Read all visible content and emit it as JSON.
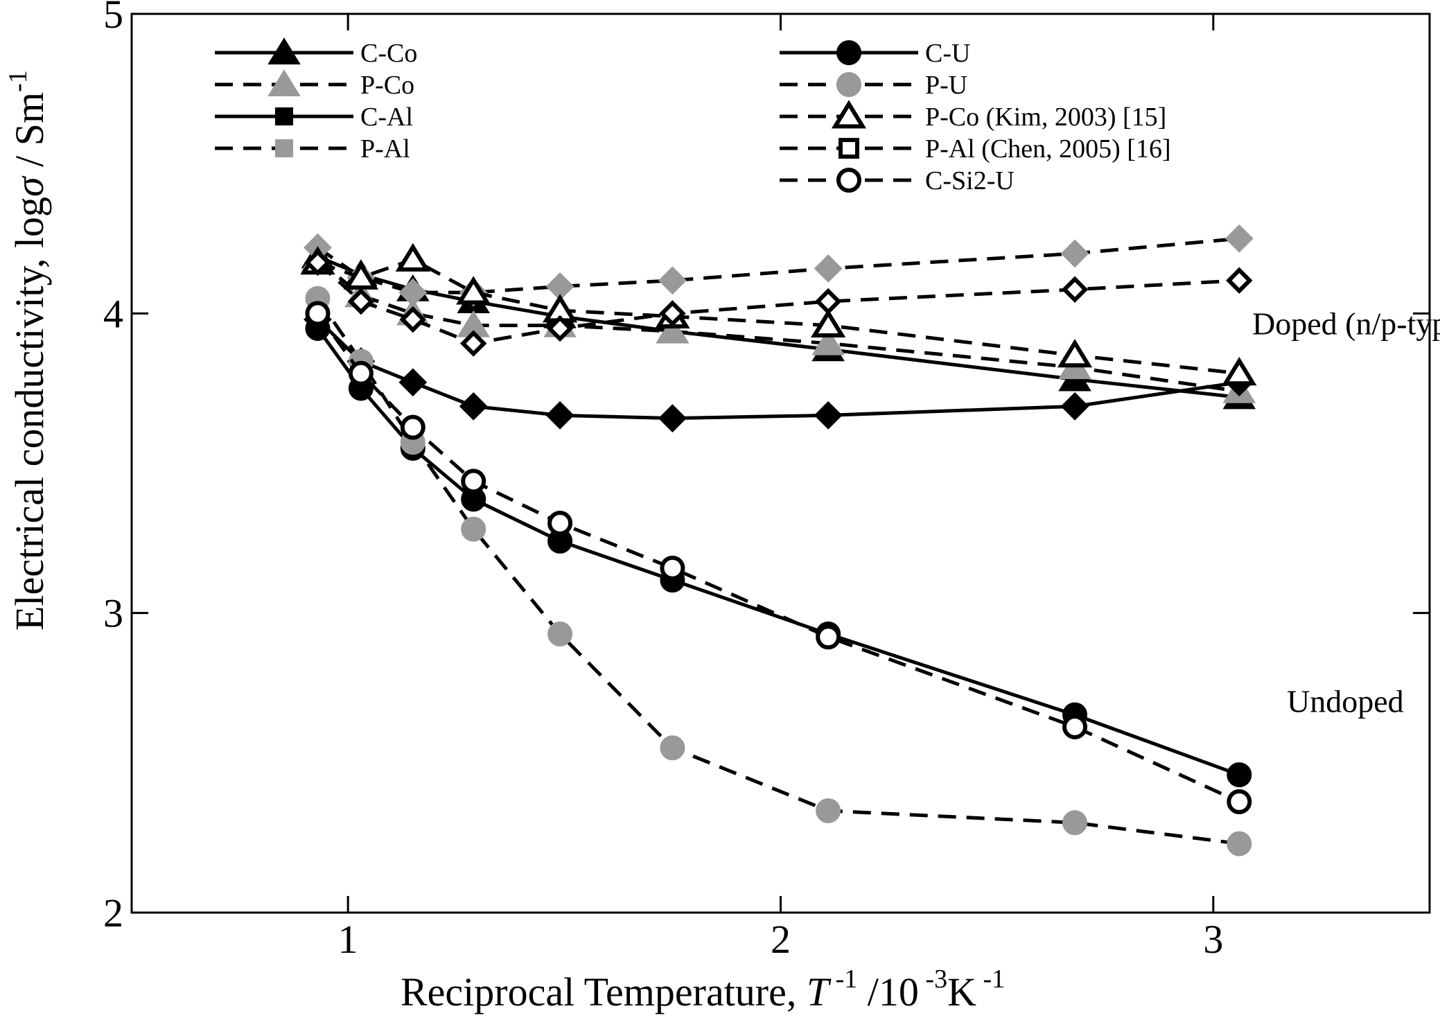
{
  "chart_data": {
    "type": "line",
    "title": "",
    "xlabel_prefix": "Reciprocal Temperature, ",
    "xlabel_var": "T",
    "xlabel_var_sup": " -1",
    "xlabel_unit_a": " /10",
    "xlabel_unit_a_sup": " -3",
    "xlabel_unit_b": "K",
    "xlabel_unit_b_sup": " -1",
    "ylabel_prefix": "Electrical conductivity, log",
    "ylabel_var": "σ",
    "ylabel_unit": " / Sm",
    "ylabel_unit_sup": "-1",
    "xlim": [
      0.5,
      3.5
    ],
    "ylim": [
      2,
      5
    ],
    "x_ticks": [
      1,
      2,
      3
    ],
    "y_ticks": [
      2,
      3,
      4,
      5
    ],
    "x_tick_labels": [
      "1",
      "2",
      "3"
    ],
    "y_tick_labels": [
      "2",
      "3",
      "4",
      "5"
    ],
    "annotations": [
      {
        "text": "Doped (n/p-type)",
        "x": 3.09,
        "y": 3.93
      },
      {
        "text": "Undoped",
        "x": 3.17,
        "y": 2.67
      }
    ],
    "series": [
      {
        "name": "C-Co",
        "style": "solid",
        "color": "#000000",
        "marker": "triangle",
        "filled": true,
        "x": [
          0.93,
          1.03,
          1.15,
          1.29,
          1.49,
          1.75,
          2.11,
          2.68,
          3.06
        ],
        "y": [
          4.19,
          4.13,
          4.08,
          4.04,
          3.99,
          3.94,
          3.88,
          3.78,
          3.72
        ]
      },
      {
        "name": "P-Co",
        "style": "dashed",
        "color": "#999999",
        "marker": "triangle",
        "filled": true,
        "x": [
          0.93,
          1.03,
          1.15,
          1.29,
          1.49,
          1.75,
          2.11,
          2.68,
          3.06
        ],
        "y": [
          4.18,
          4.06,
          4.0,
          3.96,
          3.96,
          3.94,
          3.9,
          3.82,
          3.74
        ]
      },
      {
        "name": "C-Al",
        "style": "solid",
        "color": "#000000",
        "marker": "diamond",
        "filled": true,
        "x": [
          0.93,
          1.03,
          1.15,
          1.29,
          1.49,
          1.75,
          2.11,
          2.68,
          3.06
        ],
        "y": [
          3.98,
          3.84,
          3.77,
          3.69,
          3.66,
          3.65,
          3.66,
          3.69,
          3.77
        ]
      },
      {
        "name": "P-Al",
        "style": "dashed",
        "color": "#999999",
        "marker": "diamond",
        "filled": true,
        "x": [
          0.93,
          1.03,
          1.15,
          1.29,
          1.49,
          1.75,
          2.11,
          2.68,
          3.06
        ],
        "y": [
          4.22,
          4.12,
          4.07,
          4.07,
          4.09,
          4.11,
          4.15,
          4.2,
          4.25
        ]
      },
      {
        "name": "C-U",
        "style": "solid",
        "color": "#000000",
        "marker": "circle",
        "filled": true,
        "x": [
          0.93,
          1.03,
          1.15,
          1.29,
          1.49,
          1.75,
          2.11,
          2.68,
          3.06
        ],
        "y": [
          3.95,
          3.75,
          3.55,
          3.38,
          3.24,
          3.11,
          2.93,
          2.66,
          2.46
        ]
      },
      {
        "name": "P-U",
        "style": "dashed",
        "color": "#999999",
        "marker": "circle",
        "filled": true,
        "x": [
          0.93,
          1.03,
          1.15,
          1.29,
          1.49,
          1.75,
          2.11,
          2.68,
          3.06
        ],
        "y": [
          4.05,
          3.84,
          3.57,
          3.28,
          2.93,
          2.55,
          2.34,
          2.3,
          2.23
        ]
      },
      {
        "name": "P-Co (Kim, 2003)   [15]",
        "style": "dashed",
        "color": "#000000",
        "marker": "triangle",
        "filled": false,
        "x": [
          0.93,
          1.03,
          1.15,
          1.29,
          1.49,
          1.75,
          2.11,
          2.68,
          3.06
        ],
        "y": [
          4.17,
          4.12,
          4.18,
          4.07,
          4.01,
          3.99,
          3.96,
          3.86,
          3.8
        ]
      },
      {
        "name": "P-Al (Chen, 2005)  [16]",
        "style": "dashed",
        "color": "#000000",
        "marker": "diamond",
        "filled": false,
        "x": [
          0.93,
          1.03,
          1.15,
          1.29,
          1.49,
          1.75,
          2.11,
          2.68,
          3.06
        ],
        "y": [
          4.17,
          4.04,
          3.98,
          3.9,
          3.95,
          4.0,
          4.04,
          4.08,
          4.11
        ]
      },
      {
        "name": "C-Si2-U",
        "style": "dashed",
        "color": "#000000",
        "marker": "circle",
        "filled": false,
        "x": [
          0.93,
          1.03,
          1.15,
          1.29,
          1.49,
          1.75,
          2.11,
          2.68,
          3.06
        ],
        "y": [
          4.0,
          3.8,
          3.62,
          3.44,
          3.3,
          3.15,
          2.92,
          2.62,
          2.37
        ]
      }
    ],
    "legend": {
      "columns": [
        [
          "C-Co",
          "P-Co",
          "C-Al",
          "P-Al"
        ],
        [
          "C-U",
          "P-U",
          "P-Co (Kim, 2003)   [15]",
          "P-Al (Chen, 2005)  [16]",
          "C-Si2-U"
        ]
      ],
      "placement": "top"
    }
  }
}
